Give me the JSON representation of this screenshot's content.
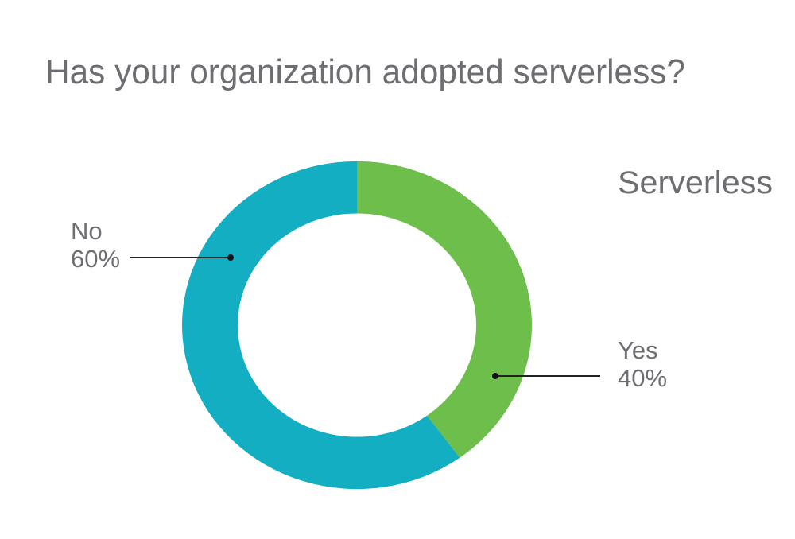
{
  "chart_data": {
    "type": "pie",
    "variant": "donut",
    "title": "Has your organization adopted serverless?",
    "legend_title": "Serverless",
    "slices": [
      {
        "label": "Yes",
        "value": 40,
        "value_label": "40%",
        "color": "#6dbe4b"
      },
      {
        "label": "No",
        "value": 60,
        "value_label": "60%",
        "color": "#14aec3"
      }
    ],
    "start_angle": "12 o'clock",
    "direction": "clockwise",
    "text_color": "#6d6e72"
  }
}
